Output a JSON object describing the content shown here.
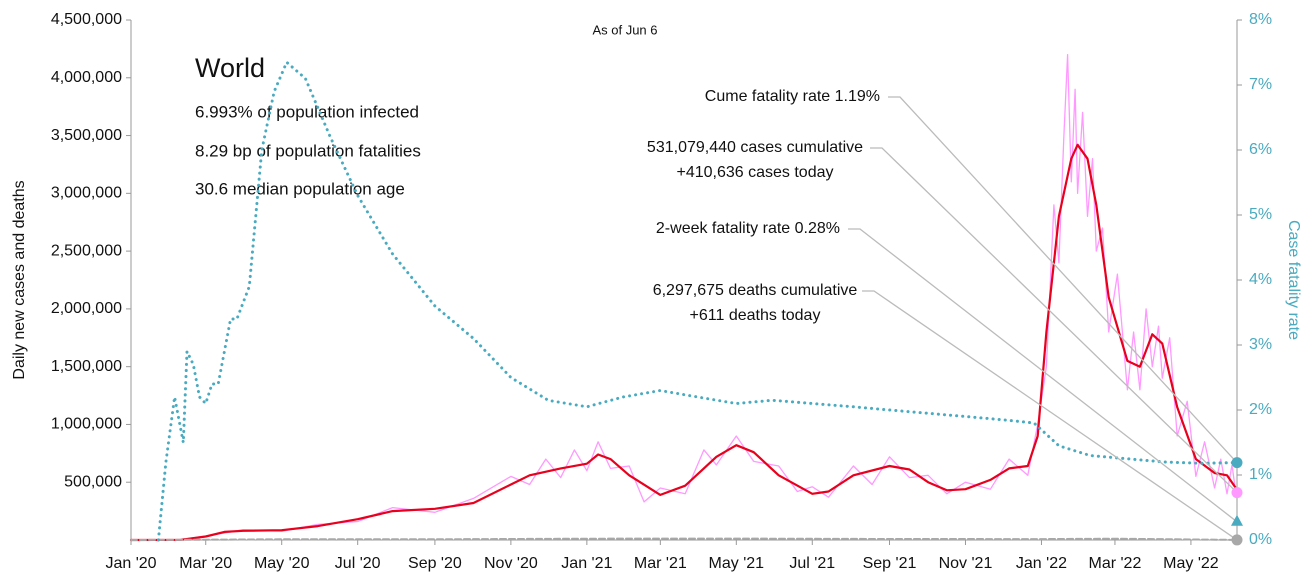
{
  "chart_data": {
    "type": "line",
    "subtitle": "As of Jun 6",
    "ylabel": "Daily new cases and deaths",
    "y2label": "Case fatality rate",
    "inset": {
      "title": "World",
      "lines": [
        "6.993% of population infected",
        "8.29 bp of population fatalities",
        "30.6 median population age"
      ]
    },
    "xlim": [
      0,
      888
    ],
    "xticks": [
      {
        "value": 0,
        "label": "Jan '20"
      },
      {
        "value": 60,
        "label": "Mar '20"
      },
      {
        "value": 121,
        "label": "May '20"
      },
      {
        "value": 182,
        "label": "Jul '20"
      },
      {
        "value": 244,
        "label": "Sep '20"
      },
      {
        "value": 305,
        "label": "Nov '20"
      },
      {
        "value": 366,
        "label": "Jan '21"
      },
      {
        "value": 425,
        "label": "Mar '21"
      },
      {
        "value": 486,
        "label": "May '21"
      },
      {
        "value": 547,
        "label": "Jul '21"
      },
      {
        "value": 609,
        "label": "Sep '21"
      },
      {
        "value": 670,
        "label": "Nov '21"
      },
      {
        "value": 731,
        "label": "Jan '22"
      },
      {
        "value": 790,
        "label": "Mar '22"
      },
      {
        "value": 851,
        "label": "May '22"
      }
    ],
    "ylim": [
      0,
      4500000
    ],
    "yticks": [
      {
        "value": 500000,
        "label": "500,000"
      },
      {
        "value": 1000000,
        "label": "1,000,000"
      },
      {
        "value": 1500000,
        "label": "1,500,000"
      },
      {
        "value": 2000000,
        "label": "2,000,000"
      },
      {
        "value": 2500000,
        "label": "2,500,000"
      },
      {
        "value": 3000000,
        "label": "3,000,000"
      },
      {
        "value": 3500000,
        "label": "3,500,000"
      },
      {
        "value": 4000000,
        "label": "4,000,000"
      },
      {
        "value": 4500000,
        "label": "4,500,000"
      }
    ],
    "y2lim": [
      0,
      8
    ],
    "y2ticks": [
      {
        "value": 0,
        "label": "0%"
      },
      {
        "value": 1,
        "label": "1%"
      },
      {
        "value": 2,
        "label": "2%"
      },
      {
        "value": 3,
        "label": "3%"
      },
      {
        "value": 4,
        "label": "4%"
      },
      {
        "value": 5,
        "label": "5%"
      },
      {
        "value": 6,
        "label": "6%"
      },
      {
        "value": 7,
        "label": "7%"
      },
      {
        "value": 8,
        "label": "8%"
      }
    ],
    "grid": false,
    "series": [
      {
        "color": "#ff99ff",
        "style": "solid",
        "width": 1.3,
        "x": [
          0,
          40,
          60,
          75,
          90,
          121,
          150,
          182,
          210,
          244,
          275,
          305,
          320,
          333,
          345,
          356,
          366,
          375,
          385,
          400,
          412,
          425,
          445,
          460,
          470,
          486,
          500,
          520,
          535,
          547,
          560,
          580,
          595,
          609,
          625,
          640,
          655,
          670,
          690,
          705,
          720,
          728,
          735,
          741,
          745,
          749,
          752,
          755,
          758,
          760,
          764,
          768,
          772,
          775,
          780,
          785,
          792,
          800,
          805,
          810,
          815,
          820,
          825,
          828,
          834,
          840,
          848,
          855,
          862,
          870,
          875,
          880,
          884,
          887
        ],
        "values": [
          0,
          2500,
          35000,
          60000,
          90000,
          75000,
          135000,
          160000,
          280000,
          240000,
          360000,
          550000,
          480000,
          700000,
          540000,
          780000,
          600000,
          850000,
          620000,
          640000,
          330000,
          450000,
          400000,
          780000,
          650000,
          900000,
          680000,
          640000,
          420000,
          460000,
          370000,
          640000,
          480000,
          720000,
          540000,
          560000,
          400000,
          500000,
          440000,
          700000,
          560000,
          1000000,
          1500000,
          2900000,
          2400000,
          3500000,
          4200000,
          3100000,
          3900000,
          3000000,
          3700000,
          2800000,
          3300000,
          2500000,
          2700000,
          1800000,
          2300000,
          1300000,
          1800000,
          1300000,
          2000000,
          1500000,
          1850000,
          1400000,
          1750000,
          900000,
          1200000,
          550000,
          850000,
          450000,
          700000,
          400000,
          650000,
          410636
        ]
      },
      {
        "color": "#e8001c",
        "style": "solid",
        "width": 2.2,
        "x": [
          0,
          40,
          60,
          75,
          90,
          121,
          150,
          182,
          210,
          244,
          275,
          305,
          320,
          345,
          366,
          375,
          385,
          400,
          425,
          445,
          470,
          486,
          500,
          520,
          547,
          560,
          580,
          609,
          625,
          640,
          655,
          670,
          690,
          705,
          720,
          728,
          735,
          745,
          755,
          760,
          768,
          775,
          785,
          800,
          810,
          820,
          828,
          840,
          855,
          870,
          880,
          887
        ],
        "values": [
          0,
          2000,
          30000,
          70000,
          80000,
          85000,
          120000,
          180000,
          250000,
          270000,
          320000,
          480000,
          560000,
          620000,
          660000,
          740000,
          700000,
          560000,
          390000,
          470000,
          720000,
          820000,
          760000,
          560000,
          400000,
          420000,
          560000,
          640000,
          610000,
          500000,
          430000,
          440000,
          520000,
          620000,
          640000,
          900000,
          1800000,
          2800000,
          3300000,
          3420000,
          3300000,
          2900000,
          2100000,
          1550000,
          1500000,
          1780000,
          1700000,
          1150000,
          700000,
          580000,
          560000,
          450000
        ]
      },
      {
        "color": "#a8a8a8",
        "style": "dashed",
        "width": 2,
        "x": [
          0,
          60,
          121,
          244,
          366,
          486,
          609,
          731,
          790,
          887
        ],
        "values": [
          0,
          3000,
          6000,
          6000,
          11000,
          12000,
          9000,
          8000,
          11000,
          611
        ]
      },
      {
        "color": "#4aabc0",
        "style": "dotted",
        "width": 3,
        "axis": "y2",
        "x": [
          22,
          28,
          35,
          42,
          45,
          50,
          55,
          60,
          65,
          70,
          80,
          85,
          95,
          105,
          115,
          125,
          140,
          160,
          182,
          210,
          244,
          275,
          305,
          335,
          366,
          395,
          425,
          455,
          486,
          515,
          547,
          580,
          609,
          640,
          670,
          700,
          725,
          745,
          770,
          800,
          830,
          860,
          887
        ],
        "values": [
          0,
          1.2,
          2.2,
          1.5,
          2.9,
          2.7,
          2.2,
          2.1,
          2.4,
          2.4,
          3.4,
          3.4,
          3.9,
          6.0,
          6.9,
          7.35,
          7.1,
          6.2,
          5.3,
          4.4,
          3.6,
          3.1,
          2.5,
          2.15,
          2.05,
          2.2,
          2.3,
          2.2,
          2.1,
          2.15,
          2.1,
          2.05,
          2.0,
          1.95,
          1.9,
          1.85,
          1.8,
          1.45,
          1.3,
          1.25,
          1.2,
          1.18,
          1.19
        ]
      }
    ],
    "annotations": [
      {
        "text": [
          "Cume fatality rate 1.19%"
        ],
        "value": 1.19,
        "axis": "y2",
        "marker": "circle",
        "color": "#4aabc0"
      },
      {
        "text": [
          "531,079,440 cases cumulative",
          "+410,636 cases today"
        ],
        "value": 410636,
        "axis": "y",
        "marker": "circle",
        "color": "#ff99ff"
      },
      {
        "text": [
          "2-week fatality rate 0.28%"
        ],
        "value": 0.28,
        "axis": "y2",
        "marker": "triangle",
        "color": "#4aabc0"
      },
      {
        "text": [
          "6,297,675 deaths cumulative",
          "+611 deaths today"
        ],
        "value": 611,
        "axis": "y",
        "marker": "circle",
        "color": "#a8a8a8"
      }
    ]
  }
}
